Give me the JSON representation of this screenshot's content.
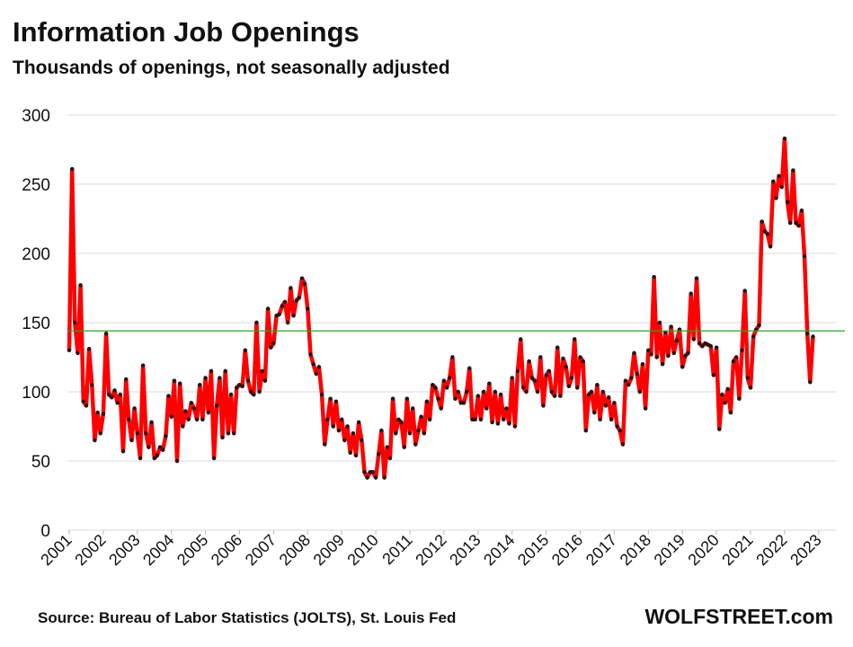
{
  "colors": {
    "line": "#ff0000",
    "marker": "#1a1a1a",
    "reference": "#22aa22",
    "grid": "#d9d9d9",
    "text": "#111111"
  },
  "chart_data": {
    "type": "line",
    "title": "Information  Job Openings",
    "subtitle": "Thousands of openings, not seasonally adjusted",
    "xlabel": "",
    "ylabel": "",
    "ylim": [
      0,
      300
    ],
    "y_ticks": [
      0,
      50,
      100,
      150,
      200,
      250,
      300
    ],
    "y_tick_labels": [
      "0",
      "50",
      "100",
      "150",
      "200",
      "250",
      "300"
    ],
    "x_tick_labels": [
      "2001",
      "2002",
      "2003",
      "2004",
      "2005",
      "2006",
      "2007",
      "2008",
      "2009",
      "2010",
      "2011",
      "2012",
      "2013",
      "2014",
      "2015",
      "2016",
      "2017",
      "2018",
      "2019",
      "2020",
      "2021",
      "2022",
      "2023"
    ],
    "x_start_year": 2001,
    "grid": "horizontal",
    "reference_line": 144,
    "series": [
      {
        "name": "Information Job Openings",
        "values": [
          130,
          261,
          150,
          128,
          177,
          93,
          90,
          131,
          105,
          65,
          85,
          70,
          84,
          142,
          98,
          96,
          101,
          92,
          98,
          57,
          109,
          80,
          65,
          88,
          70,
          52,
          119,
          70,
          60,
          78,
          52,
          54,
          60,
          58,
          68,
          97,
          82,
          108,
          50,
          106,
          75,
          86,
          80,
          92,
          88,
          80,
          105,
          80,
          110,
          85,
          115,
          52,
          90,
          110,
          67,
          115,
          70,
          98,
          70,
          103,
          105,
          104,
          130,
          108,
          100,
          98,
          150,
          100,
          115,
          108,
          160,
          132,
          135,
          155,
          156,
          162,
          165,
          150,
          175,
          155,
          166,
          168,
          182,
          178,
          160,
          127,
          120,
          113,
          118,
          98,
          62,
          80,
          95,
          75,
          93,
          72,
          80,
          65,
          75,
          56,
          70,
          54,
          78,
          65,
          42,
          38,
          42,
          42,
          38,
          55,
          72,
          38,
          60,
          52,
          95,
          70,
          80,
          78,
          60,
          95,
          70,
          88,
          62,
          72,
          82,
          70,
          93,
          80,
          105,
          103,
          95,
          88,
          108,
          103,
          110,
          125,
          95,
          100,
          92,
          92,
          100,
          117,
          80,
          80,
          97,
          80,
          100,
          88,
          106,
          78,
          100,
          77,
          98,
          80,
          88,
          77,
          110,
          75,
          115,
          138,
          103,
          100,
          122,
          110,
          108,
          100,
          125,
          90,
          112,
          115,
          100,
          97,
          132,
          97,
          124,
          118,
          104,
          110,
          138,
          103,
          125,
          122,
          72,
          98,
          100,
          85,
          105,
          80,
          100,
          90,
          96,
          80,
          92,
          75,
          72,
          62,
          108,
          105,
          110,
          128,
          113,
          100,
          120,
          88,
          130,
          127,
          183,
          125,
          150,
          120,
          143,
          126,
          147,
          128,
          137,
          145,
          118,
          126,
          128,
          171,
          138,
          182,
          135,
          133,
          135,
          134,
          133,
          112,
          132,
          73,
          98,
          92,
          102,
          85,
          122,
          125,
          95,
          130,
          173,
          110,
          103,
          140,
          145,
          148,
          223,
          216,
          214,
          205,
          252,
          240,
          256,
          248,
          283,
          237,
          222,
          260,
          222,
          220,
          231,
          198,
          142,
          107,
          140
        ]
      }
    ]
  },
  "footer": {
    "source": "Source: Bureau of Labor Statistics (JOLTS), St. Louis Fed",
    "brand": "WOLFSTREET.com"
  }
}
